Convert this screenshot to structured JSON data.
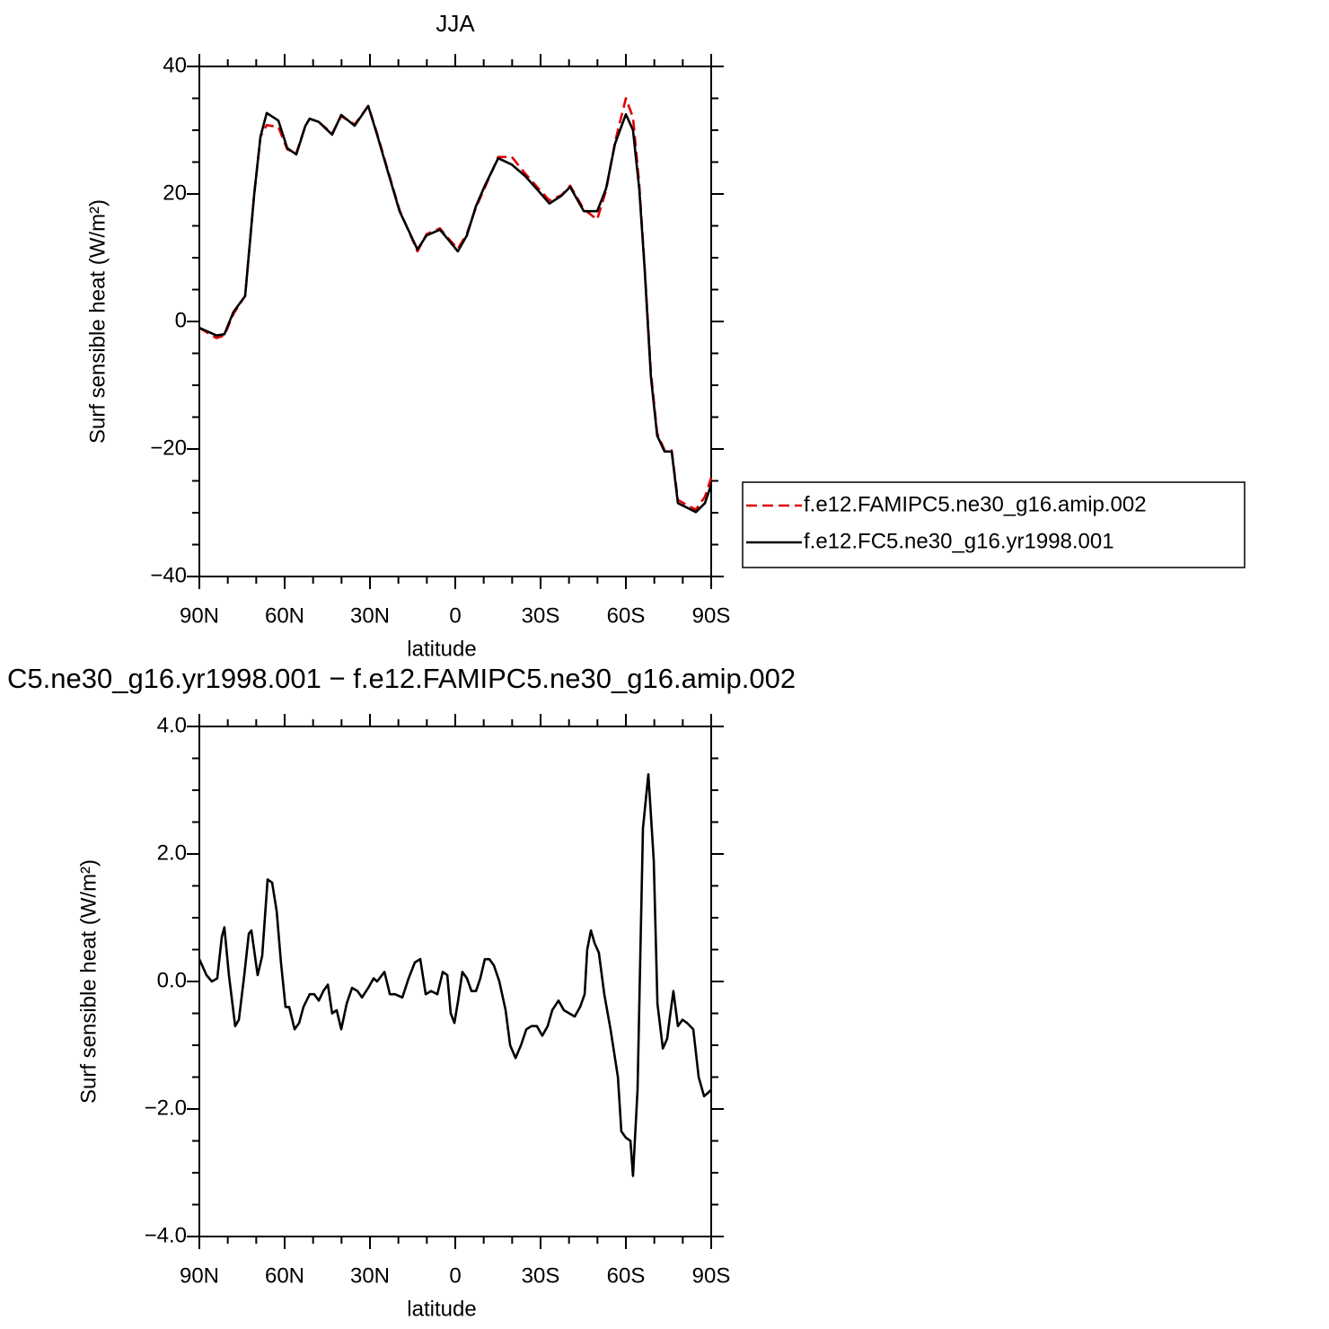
{
  "chart_data": [
    {
      "type": "line",
      "title": "JJA",
      "xlabel": "latitude",
      "ylabel": "Surf sensible heat (W/m²)",
      "xlim": [
        90,
        -90
      ],
      "xticks": [
        {
          "value": 90,
          "label": "90N"
        },
        {
          "value": 60,
          "label": "60N"
        },
        {
          "value": 30,
          "label": "30N"
        },
        0,
        {
          "value": -30,
          "label": "30S"
        },
        {
          "value": -60,
          "label": "60S"
        },
        {
          "value": -90,
          "label": "90S"
        }
      ],
      "ylim": [
        -40,
        40
      ],
      "yticks": [
        40,
        20,
        0,
        {
          "value": -20,
          "label": "−20"
        },
        {
          "value": -40,
          "label": "−40"
        }
      ],
      "x": [
        90,
        84,
        81.2,
        78,
        73.9,
        70.7,
        68.5,
        66.3,
        62.2,
        59.1,
        55.9,
        52.7,
        51.2,
        48,
        43.3,
        40.1,
        35.4,
        30.6,
        27.5,
        24.3,
        19.6,
        13.3,
        10.1,
        5.4,
        2.2,
        -0.9,
        -4.1,
        -7.2,
        -10.4,
        -15.1,
        -19.9,
        -24.6,
        -29.4,
        -33.1,
        -37.3,
        -40.4,
        -45.2,
        -49.9,
        -53,
        -56.2,
        -60,
        -62.5,
        -64.7,
        -66.6,
        -68.8,
        -71,
        -73.6,
        -76.1,
        -78.3,
        -81.5,
        -84.6,
        -87.8,
        -90
      ],
      "series": [
        {
          "name": "f.e12.FAMIPC5.ne30_g16.amip.002",
          "color": "#e00000",
          "linestyle": "dashed",
          "values": [
            -1,
            -2.6,
            -2.2,
            1.2,
            4,
            20,
            29,
            30.8,
            30.5,
            27,
            26.4,
            30.7,
            31.8,
            31.3,
            29.5,
            32.2,
            30.9,
            33.8,
            29.5,
            24.6,
            17.5,
            11,
            13.7,
            14.6,
            12.9,
            11.4,
            13.8,
            17.8,
            21,
            25.8,
            25.8,
            23.2,
            20.8,
            19,
            19.8,
            21.3,
            17.6,
            16,
            20.5,
            28.2,
            35,
            32,
            21.5,
            8.5,
            -8,
            -17.5,
            -20.2,
            -20.2,
            -28,
            -28.8,
            -29.5,
            -27.5,
            -24.5
          ]
        },
        {
          "name": "f.e12.FC5.ne30_g16.yr1998.001",
          "color": "#000000",
          "linestyle": "solid",
          "values": [
            -1,
            -2.2,
            -2.0,
            1.5,
            4,
            20,
            29,
            32.7,
            31.5,
            27.2,
            26.2,
            30.7,
            31.8,
            31.3,
            29.3,
            32.4,
            30.7,
            33.8,
            29.3,
            24.4,
            17.3,
            11.3,
            13.5,
            14.4,
            12.7,
            11,
            13.5,
            18,
            21.3,
            25.6,
            24.6,
            22.8,
            20.4,
            18.5,
            19.7,
            21.1,
            17.3,
            17.3,
            20.8,
            27.9,
            32.5,
            30,
            20.8,
            8.2,
            -8.7,
            -17.9,
            -20.4,
            -20.4,
            -28.5,
            -29.2,
            -29.9,
            -28.5,
            -25.6
          ]
        }
      ]
    },
    {
      "type": "line",
      "title": "C5.ne30_g16.yr1998.001 − f.e12.FAMIPC5.ne30_g16.amip.002",
      "xlabel": "latitude",
      "ylabel": "Surf sensible heat (W/m²)",
      "xlim": [
        90,
        -90
      ],
      "xticks": [
        {
          "value": 90,
          "label": "90N"
        },
        {
          "value": 60,
          "label": "60N"
        },
        {
          "value": 30,
          "label": "30N"
        },
        0,
        {
          "value": -30,
          "label": "30S"
        },
        {
          "value": -60,
          "label": "60S"
        },
        {
          "value": -90,
          "label": "90S"
        }
      ],
      "ylim": [
        -4,
        4
      ],
      "yticks": [
        {
          "value": 4,
          "label": "4.0"
        },
        {
          "value": 2,
          "label": "2.0"
        },
        {
          "value": 0,
          "label": "0.0"
        },
        {
          "value": -2,
          "label": "−2.0"
        },
        {
          "value": -4,
          "label": "−4.0"
        }
      ],
      "x": [
        90,
        87.5,
        85.6,
        83.7,
        82.1,
        81.2,
        79.6,
        77.4,
        76.1,
        74.2,
        72.6,
        71.7,
        69.5,
        67.9,
        66,
        64.4,
        62.8,
        61.3,
        59.7,
        58.4,
        56.5,
        54.9,
        53.4,
        51.2,
        49.6,
        48,
        46.4,
        44.8,
        43.3,
        41.7,
        40.1,
        38.2,
        36.3,
        34.4,
        32.8,
        30.6,
        28.7,
        27.5,
        24.9,
        23,
        21.2,
        18.6,
        16.4,
        14.2,
        12.3,
        10.4,
        8.5,
        6.3,
        4.4,
        2.8,
        1.6,
        0.3,
        -1,
        -2.5,
        -4.1,
        -5.7,
        -7.3,
        -8.8,
        -10.4,
        -12,
        -13.6,
        -15.5,
        -17.7,
        -19.3,
        -21.2,
        -23.1,
        -25,
        -26.8,
        -28.7,
        -30.6,
        -32.5,
        -34.1,
        -36.3,
        -38.2,
        -40.1,
        -42,
        -43.9,
        -45.5,
        -46.4,
        -47.7,
        -49,
        -50.5,
        -52.4,
        -54.6,
        -57.2,
        -58.4,
        -60,
        -61.6,
        -62.5,
        -64.1,
        -66,
        -67.9,
        -69.8,
        -71.1,
        -73,
        -74.5,
        -75.5,
        -76.7,
        -78.3,
        -79.9,
        -81.5,
        -83.7,
        -85.6,
        -87.5,
        -88.8,
        -90
      ],
      "series": [
        {
          "color": "#000000",
          "linestyle": "solid",
          "values": [
            0.35,
            0.1,
            0,
            0.05,
            0.7,
            0.85,
            0.1,
            -0.7,
            -0.6,
            0.1,
            0.75,
            0.8,
            0.1,
            0.4,
            1.6,
            1.55,
            1.1,
            0.3,
            -0.4,
            -0.4,
            -0.75,
            -0.65,
            -0.4,
            -0.2,
            -0.2,
            -0.3,
            -0.15,
            -0.05,
            -0.5,
            -0.45,
            -0.75,
            -0.35,
            -0.1,
            -0.15,
            -0.25,
            -0.1,
            0.05,
            0,
            0.15,
            -0.2,
            -0.2,
            -0.25,
            0.05,
            0.3,
            0.35,
            -0.2,
            -0.15,
            -0.2,
            0.15,
            0.1,
            -0.5,
            -0.65,
            -0.3,
            0.15,
            0.05,
            -0.15,
            -0.15,
            0.05,
            0.35,
            0.35,
            0.25,
            0,
            -0.45,
            -1.0,
            -1.2,
            -1.0,
            -0.75,
            -0.7,
            -0.7,
            -0.85,
            -0.7,
            -0.45,
            -0.3,
            -0.45,
            -0.5,
            -0.55,
            -0.4,
            -0.2,
            0.5,
            0.8,
            0.6,
            0.45,
            -0.2,
            -0.75,
            -1.5,
            -2.35,
            -2.45,
            -2.5,
            -3.05,
            -1.7,
            2.4,
            3.25,
            1.9,
            -0.35,
            -1.05,
            -0.9,
            -0.55,
            -0.15,
            -0.7,
            -0.6,
            -0.65,
            -0.75,
            -1.5,
            -1.8,
            -1.75,
            -1.7
          ]
        }
      ]
    }
  ]
}
